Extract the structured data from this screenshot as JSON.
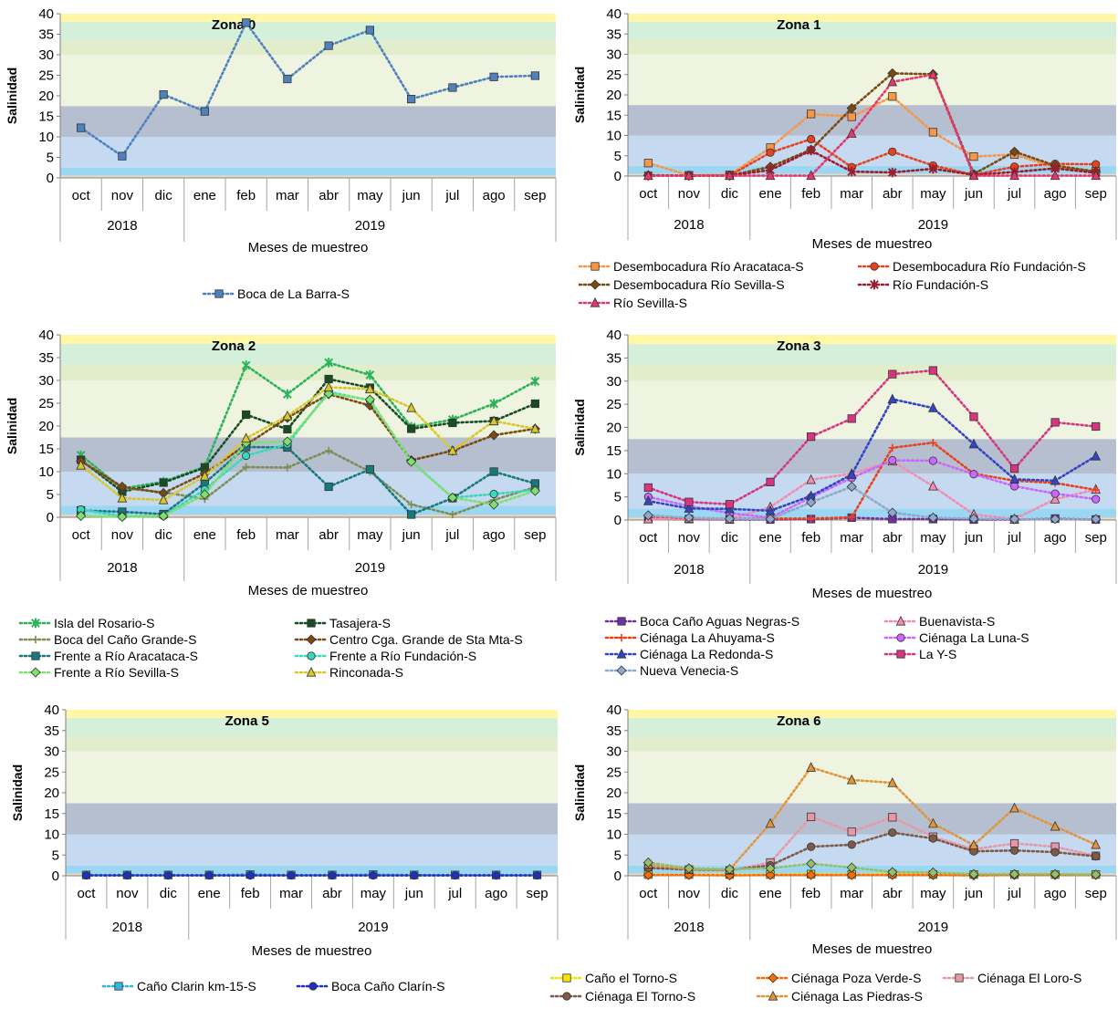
{
  "chart_data": [
    {
      "type": "line",
      "title": "Zona 0",
      "ylabel": "Salinidad",
      "xlabel": "Meses de muestreo",
      "ylim": [
        0,
        40
      ],
      "yticks": [
        "0",
        "5",
        "10",
        "15",
        "20",
        "25",
        "30",
        "35",
        "40"
      ],
      "categories": [
        "oct",
        "nov",
        "dic",
        "ene",
        "feb",
        "mar",
        "abr",
        "may",
        "jun",
        "jul",
        "ago",
        "sep"
      ],
      "years": [
        "2018",
        "2019"
      ],
      "legend_position": "bottom",
      "series": [
        {
          "name": "Boca de La Barra-S",
          "color": "#4f81bd",
          "marker": "square",
          "values": [
            12.2,
            5.3,
            20.3,
            16.2,
            37.8,
            24.1,
            32.2,
            36.0,
            19.2,
            22.0,
            24.6,
            24.9
          ]
        }
      ]
    },
    {
      "type": "line",
      "title": "Zona 1",
      "ylabel": "Salinidad",
      "xlabel": "Meses de muestreo",
      "ylim": [
        0,
        40
      ],
      "yticks": [
        "0",
        "5",
        "10",
        "15",
        "20",
        "25",
        "30",
        "35",
        "40"
      ],
      "categories": [
        "oct",
        "nov",
        "dic",
        "ene",
        "feb",
        "mar",
        "abr",
        "may",
        "jun",
        "jul",
        "ago",
        "sep"
      ],
      "years": [
        "2018",
        "2019"
      ],
      "legend_position": "bottom",
      "series": [
        {
          "name": "Desembocadura Río Aracataca-S",
          "color": "#f79646",
          "marker": "square",
          "values": [
            3.2,
            0.2,
            0.3,
            7.0,
            15.3,
            14.6,
            19.6,
            10.8,
            4.8,
            5.3,
            2.2,
            1.2
          ]
        },
        {
          "name": "Desembocadura Río Fundación-S",
          "color": "#e8411e",
          "marker": "circle",
          "values": [
            0.2,
            0.1,
            0.1,
            5.8,
            9.1,
            2.2,
            6.0,
            2.6,
            0.3,
            2.3,
            3.0,
            2.9
          ]
        },
        {
          "name": "Desembocadura Río Sevilla-S",
          "color": "#7b4a12",
          "marker": "diamond",
          "values": [
            0.2,
            0.1,
            0.1,
            2.3,
            6.5,
            16.7,
            25.3,
            25.1,
            0.5,
            6.0,
            2.6,
            1.1
          ]
        },
        {
          "name": "Río Fundación-S",
          "color": "#9b1c2e",
          "marker": "star",
          "values": [
            0.1,
            0.1,
            0.1,
            1.5,
            6.3,
            1.1,
            0.9,
            1.8,
            0.3,
            1.0,
            1.9,
            0.8
          ]
        },
        {
          "name": "Río Sevilla-S",
          "color": "#e3386b",
          "marker": "triangle",
          "values": [
            0.1,
            0.1,
            0.1,
            0.1,
            0.1,
            10.5,
            23.2,
            25.0,
            0.1,
            0.1,
            0.1,
            0.1
          ]
        }
      ]
    },
    {
      "type": "line",
      "title": "Zona 2",
      "ylabel": "Salinidad",
      "xlabel": "Meses de muestreo",
      "ylim": [
        0,
        40
      ],
      "yticks": [
        "0",
        "5",
        "10",
        "15",
        "20",
        "25",
        "30",
        "35",
        "40"
      ],
      "categories": [
        "oct",
        "nov",
        "dic",
        "ene",
        "feb",
        "mar",
        "abr",
        "may",
        "jun",
        "jul",
        "ago",
        "sep"
      ],
      "years": [
        "2018",
        "2019"
      ],
      "legend_position": "bottom",
      "series": [
        {
          "name": "Isla del Rosario-S",
          "color": "#2db25a",
          "marker": "star",
          "values": [
            13.6,
            6.3,
            7.8,
            11.1,
            33.3,
            27.0,
            33.9,
            31.2,
            19.8,
            21.4,
            24.9,
            29.8
          ]
        },
        {
          "name": "Tasajera-S",
          "color": "#184d24",
          "marker": "square",
          "values": [
            12.6,
            5.6,
            7.6,
            10.9,
            22.5,
            19.3,
            30.3,
            28.4,
            19.4,
            20.7,
            21.1,
            24.9
          ]
        },
        {
          "name": "Boca del Caño Grande-S",
          "color": "#7f8c54",
          "marker": "plus",
          "values": [
            12.5,
            6.4,
            5.5,
            4.0,
            11.0,
            10.9,
            14.6,
            10.0,
            2.8,
            0.6,
            3.8,
            6.6
          ]
        },
        {
          "name": "Centro Cga. Grande de Sta Mta-S",
          "color": "#7b4a12",
          "marker": "diamond",
          "values": [
            12.3,
            6.7,
            5.3,
            9.6,
            15.9,
            21.8,
            27.0,
            24.5,
            12.5,
            14.6,
            18.0,
            19.4
          ]
        },
        {
          "name": "Frente a Río Aracataca-S",
          "color": "#17797a",
          "marker": "square",
          "values": [
            1.5,
            1.2,
            0.7,
            7.5,
            15.4,
            15.3,
            6.7,
            10.5,
            0.6,
            4.2,
            10.0,
            7.4
          ]
        },
        {
          "name": "Frente a Río Fundación-S",
          "color": "#36d9b8",
          "marker": "circle",
          "values": [
            1.7,
            0.2,
            0.3,
            6.1,
            13.5,
            16.0,
            27.5,
            25.6,
            12.3,
            4.3,
            5.1,
            6.0
          ]
        },
        {
          "name": "Frente a Río Sevilla-S",
          "color": "#7ee06e",
          "marker": "diamond",
          "values": [
            0.3,
            0.1,
            0.3,
            5.0,
            16.3,
            16.6,
            27.1,
            25.8,
            12.2,
            4.3,
            2.8,
            5.8
          ]
        },
        {
          "name": "Rinconada-S",
          "color": "#d8c82c",
          "marker": "triangle",
          "values": [
            11.4,
            4.2,
            3.8,
            9.0,
            17.3,
            22.2,
            28.5,
            28.1,
            24.0,
            14.6,
            21.1,
            19.4
          ]
        }
      ]
    },
    {
      "type": "line",
      "title": "Zona 3",
      "ylabel": "Salinidad",
      "xlabel": "Meses de muestreo",
      "ylim": [
        0,
        40
      ],
      "yticks": [
        "0",
        "5",
        "10",
        "15",
        "20",
        "25",
        "30",
        "35",
        "40"
      ],
      "categories": [
        "oct",
        "nov",
        "dic",
        "ene",
        "feb",
        "mar",
        "abr",
        "may",
        "jun",
        "jul",
        "ago",
        "sep"
      ],
      "years": [
        "2018",
        "2019"
      ],
      "legend_position": "bottom",
      "series": [
        {
          "name": "Boca Caño Aguas Negras-S",
          "color": "#7030a0",
          "marker": "square",
          "values": [
            0.3,
            0.2,
            0.1,
            0.1,
            0.2,
            0.5,
            0.2,
            0.2,
            0.1,
            0.1,
            0.3,
            0.1
          ]
        },
        {
          "name": "Buenavista-S",
          "color": "#f28cb1",
          "marker": "triangle",
          "values": [
            0.2,
            0.3,
            0.2,
            2.8,
            8.7,
            10.0,
            12.7,
            7.3,
            1.2,
            0.2,
            4.5,
            6.6
          ]
        },
        {
          "name": "Ciénaga La Ahuyama-S",
          "color": "#e8411e",
          "marker": "plus",
          "values": [
            0.8,
            0.4,
            0.3,
            0.3,
            0.3,
            0.6,
            15.6,
            16.7,
            10.0,
            8.5,
            8.0,
            6.5
          ]
        },
        {
          "name": "Ciénaga La Luna-S",
          "color": "#cc66ff",
          "marker": "circle",
          "values": [
            5.0,
            3.0,
            1.5,
            0.5,
            4.9,
            9.1,
            12.9,
            12.8,
            9.9,
            7.3,
            5.7,
            4.5
          ]
        },
        {
          "name": "Ciénaga La Redonda-S",
          "color": "#3344c4",
          "marker": "triangle",
          "values": [
            4.1,
            2.5,
            2.4,
            2.0,
            5.2,
            9.8,
            26.1,
            24.2,
            16.4,
            8.8,
            8.5,
            13.8
          ]
        },
        {
          "name": "La Y-S",
          "color": "#d6357f",
          "marker": "square",
          "values": [
            7.0,
            3.9,
            3.4,
            8.2,
            18.0,
            21.9,
            31.5,
            32.3,
            22.3,
            11.1,
            21.1,
            20.2
          ]
        },
        {
          "name": "Nueva Venecia-S",
          "color": "#8ea9cc",
          "marker": "diamond",
          "values": [
            1.0,
            0.5,
            0.3,
            0.2,
            3.8,
            7.2,
            1.6,
            0.5,
            0.3,
            0.2,
            0.2,
            0.2
          ]
        }
      ]
    },
    {
      "type": "line",
      "title": "Zona 5",
      "ylabel": "Salinidad",
      "xlabel": "Meses de muestreo",
      "ylim": [
        0,
        40
      ],
      "yticks": [
        "0",
        "5",
        "10",
        "15",
        "20",
        "25",
        "30",
        "35",
        "40"
      ],
      "categories": [
        "oct",
        "nov",
        "dic",
        "ene",
        "feb",
        "mar",
        "abr",
        "may",
        "jun",
        "jul",
        "ago",
        "sep"
      ],
      "years": [
        "2018",
        "2019"
      ],
      "legend_position": "bottom",
      "series": [
        {
          "name": "Caño Clarin km-15-S",
          "color": "#31b5e0",
          "marker": "square",
          "values": [
            0.2,
            0.2,
            0.2,
            0.2,
            0.3,
            0.2,
            0.2,
            0.3,
            0.2,
            0.2,
            0.2,
            0.2
          ]
        },
        {
          "name": "Boca Caño Clarín-S",
          "color": "#1f2fbf",
          "marker": "circle",
          "values": [
            0.1,
            0.1,
            0.1,
            0.1,
            0.1,
            0.1,
            0.1,
            0.1,
            0.1,
            0.1,
            0.1,
            0.1
          ]
        }
      ]
    },
    {
      "type": "line",
      "title": "Zona 6",
      "ylabel": "Salinidad",
      "xlabel": "Meses de muestreo",
      "ylim": [
        0,
        40
      ],
      "yticks": [
        "0",
        "5",
        "10",
        "15",
        "20",
        "25",
        "30",
        "35",
        "40"
      ],
      "categories": [
        "oct",
        "nov",
        "dic",
        "ene",
        "feb",
        "mar",
        "abr",
        "may",
        "jun",
        "jul",
        "ago",
        "sep"
      ],
      "years": [
        "2018",
        "2019"
      ],
      "legend_position": "bottom",
      "series": [
        {
          "name": "Caño el Torno-S",
          "color": "#f2e600",
          "marker": "square",
          "values": [
            0.3,
            0.3,
            0.3,
            0.3,
            0.4,
            0.3,
            0.4,
            0.3,
            0.3,
            0.3,
            0.3,
            0.3
          ]
        },
        {
          "name": "Ciénaga  Poza Verde-S",
          "color": "#ff6a00",
          "marker": "diamond",
          "values": [
            0.2,
            0.2,
            0.1,
            0.2,
            0.2,
            0.2,
            0.2,
            0.2,
            0.1,
            0.2,
            0.2,
            0.2
          ]
        },
        {
          "name": "Ciénaga El Loro-S",
          "color": "#e897a6",
          "marker": "square",
          "values": [
            2.3,
            1.5,
            1.3,
            3.2,
            14.2,
            10.6,
            14.1,
            9.4,
            6.4,
            7.8,
            7.0,
            4.8
          ]
        },
        {
          "name": "Ciénaga El Torno-S",
          "color": "#7f5a47",
          "marker": "circle",
          "values": [
            1.9,
            1.5,
            1.4,
            2.5,
            7.0,
            7.5,
            10.4,
            9.0,
            5.9,
            6.1,
            5.7,
            4.7
          ]
        },
        {
          "name": "Ciénaga Las Piedras-S",
          "color": "#e0953a",
          "marker": "triangle",
          "values": [
            2.8,
            1.6,
            1.5,
            12.6,
            26.1,
            23.1,
            22.4,
            12.6,
            7.4,
            16.3,
            11.9,
            7.5
          ]
        },
        {
          "name": "",
          "color": "#96bf6a",
          "marker": "diamond",
          "values": [
            3.2,
            1.8,
            1.6,
            1.8,
            2.9,
            2.0,
            0.9,
            0.8,
            0.4,
            0.4,
            0.4,
            0.3
          ]
        }
      ]
    }
  ]
}
